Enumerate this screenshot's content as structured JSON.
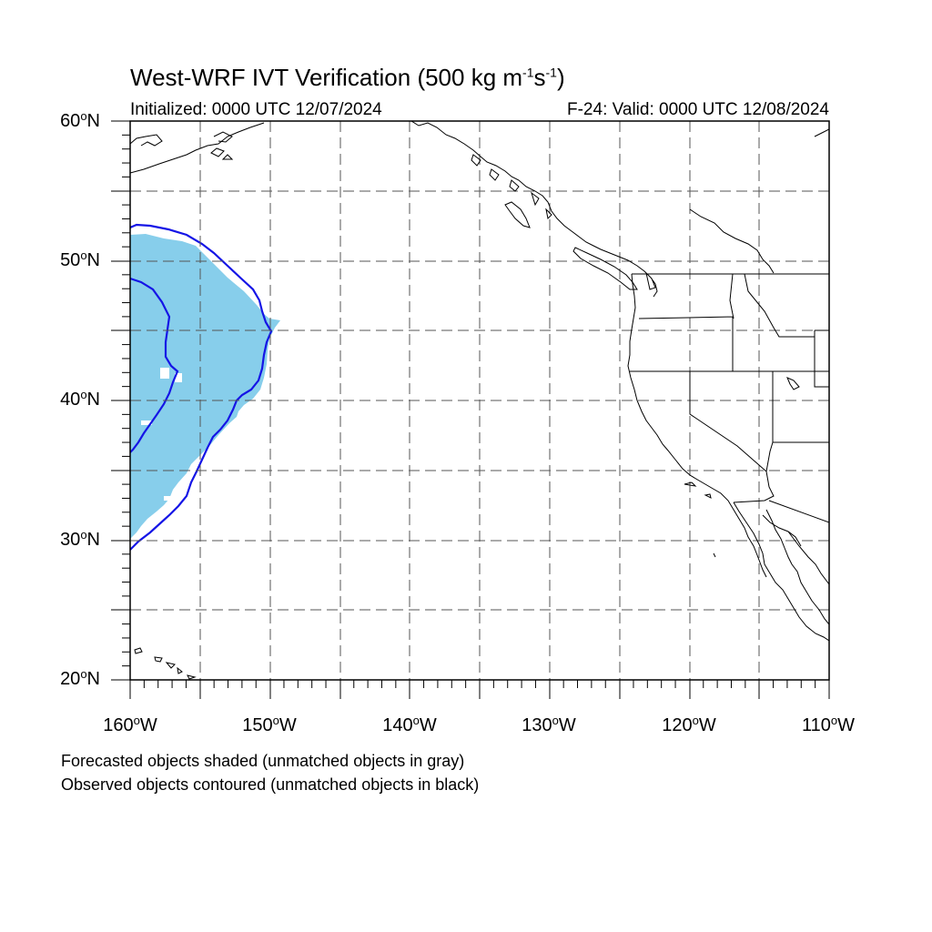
{
  "title": {
    "text": "West-WRF IVT Verification (500 kg m",
    "unit_exp1": "-1",
    "unit_mid": "s",
    "unit_exp2": "-1",
    "unit_close": ")"
  },
  "initialized": "Initialized: 0000 UTC 12/07/2024",
  "valid": "F-24: Valid: 0000 UTC 12/08/2024",
  "lat_labels": [
    {
      "value": "60",
      "suffix": "N"
    },
    {
      "value": "50",
      "suffix": "N"
    },
    {
      "value": "40",
      "suffix": "N"
    },
    {
      "value": "30",
      "suffix": "N"
    },
    {
      "value": "20",
      "suffix": "N"
    }
  ],
  "lon_labels": [
    {
      "value": "160",
      "suffix": "W"
    },
    {
      "value": "150",
      "suffix": "W"
    },
    {
      "value": "140",
      "suffix": "W"
    },
    {
      "value": "130",
      "suffix": "W"
    },
    {
      "value": "120",
      "suffix": "W"
    },
    {
      "value": "110",
      "suffix": "W"
    }
  ],
  "deg_symbol": "o",
  "notes": {
    "forecast": "Forecasted objects shaded (unmatched objects in gray)",
    "observed": "Observed objects contoured (unmatched objects in black)"
  },
  "colors": {
    "forecast_fill": "#87ceeb",
    "observed_contour": "#1515e6",
    "coastline": "#000000",
    "grid": "#555555"
  },
  "map_extent": {
    "lon_min": -160,
    "lon_max": -110,
    "lat_min": 20,
    "lat_max": 60,
    "grid_step_deg": 5
  }
}
